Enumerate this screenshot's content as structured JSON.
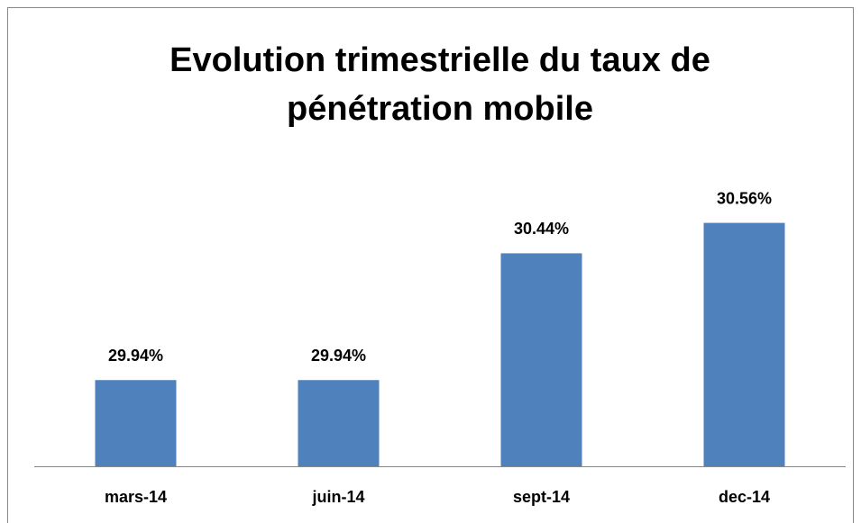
{
  "chart_data": {
    "type": "bar",
    "title": "Evolution trimestrielle du taux de pénétration mobile",
    "categories": [
      "mars-14",
      "juin-14",
      "sept-14",
      "dec-14"
    ],
    "values": [
      29.94,
      29.94,
      30.44,
      30.56
    ],
    "value_labels": [
      "29.94%",
      "29.94%",
      "30.44%",
      "30.56%"
    ],
    "color": "#4f81bd",
    "ylim": [
      29.6,
      30.8
    ]
  }
}
